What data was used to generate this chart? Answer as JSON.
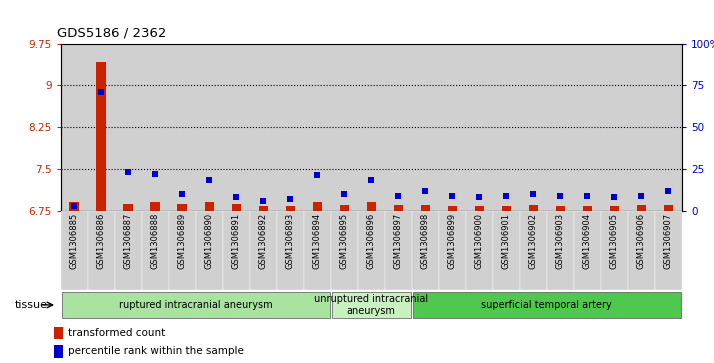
{
  "title": "GDS5186 / 2362",
  "samples": [
    "GSM1306885",
    "GSM1306886",
    "GSM1306887",
    "GSM1306888",
    "GSM1306889",
    "GSM1306890",
    "GSM1306891",
    "GSM1306892",
    "GSM1306893",
    "GSM1306894",
    "GSM1306895",
    "GSM1306896",
    "GSM1306897",
    "GSM1306898",
    "GSM1306899",
    "GSM1306900",
    "GSM1306901",
    "GSM1306902",
    "GSM1306903",
    "GSM1306904",
    "GSM1306905",
    "GSM1306906",
    "GSM1306907"
  ],
  "red_values": [
    6.9,
    9.42,
    6.87,
    6.9,
    6.87,
    6.9,
    6.87,
    6.83,
    6.84,
    6.9,
    6.85,
    6.9,
    6.85,
    6.85,
    6.83,
    6.83,
    6.83,
    6.85,
    6.83,
    6.83,
    6.83,
    6.85,
    6.85
  ],
  "blue_values": [
    3,
    71,
    23,
    22,
    10,
    18,
    8,
    6,
    7,
    21,
    10,
    18,
    9,
    12,
    9,
    8,
    9,
    10,
    9,
    9,
    8,
    9,
    12
  ],
  "ylim_left": [
    6.75,
    9.75
  ],
  "ylim_right": [
    0,
    100
  ],
  "yticks_left": [
    6.75,
    7.5,
    8.25,
    9.0,
    9.75
  ],
  "yticks_right": [
    0,
    25,
    50,
    75,
    100
  ],
  "ytick_labels_left": [
    "6.75",
    "7.5",
    "8.25",
    "9",
    "9.75"
  ],
  "ytick_labels_right": [
    "0",
    "25",
    "50",
    "75",
    "100%"
  ],
  "groups": [
    {
      "label": "ruptured intracranial aneurysm",
      "start": 0,
      "end": 10,
      "color": "#a8e4a0"
    },
    {
      "label": "unruptured intracranial\naneurysm",
      "start": 10,
      "end": 13,
      "color": "#c8f0c0"
    },
    {
      "label": "superficial temporal artery",
      "start": 13,
      "end": 23,
      "color": "#50c850"
    }
  ],
  "tissue_label": "tissue",
  "legend_red": "transformed count",
  "legend_blue": "percentile rank within the sample",
  "bar_color": "#cc2200",
  "blue_color": "#0000cc",
  "col_bg": "#d0d0d0",
  "plot_bg": "#ffffff",
  "bar_width": 0.35
}
